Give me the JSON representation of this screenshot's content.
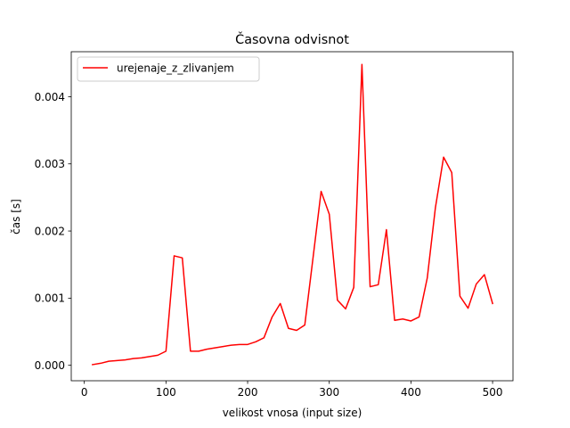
{
  "chart_data": {
    "type": "line",
    "title": "Časovna odvisnot",
    "xlabel": "velikost vnosa (input size)",
    "ylabel": "čas [s]",
    "xlim": [
      -16,
      525
    ],
    "ylim": [
      -0.00023,
      0.00467
    ],
    "x_ticks": [
      0,
      100,
      200,
      300,
      400,
      500
    ],
    "x_tick_labels": [
      "0",
      "100",
      "200",
      "300",
      "400",
      "500"
    ],
    "y_ticks": [
      0,
      0.001,
      0.002,
      0.003,
      0.004
    ],
    "y_tick_labels": [
      "0.000",
      "0.001",
      "0.002",
      "0.003",
      "0.004"
    ],
    "grid": false,
    "legend_position": "top-left",
    "series": [
      {
        "name": "urejenaje_z_zlivanjem",
        "color": "#ff0000",
        "x": [
          10,
          20,
          30,
          40,
          50,
          60,
          70,
          80,
          90,
          100,
          110,
          120,
          130,
          140,
          150,
          160,
          170,
          180,
          190,
          200,
          210,
          220,
          230,
          240,
          250,
          260,
          270,
          280,
          290,
          300,
          310,
          320,
          330,
          340,
          350,
          360,
          370,
          380,
          390,
          400,
          410,
          420,
          430,
          440,
          450,
          460,
          470,
          480,
          490,
          500
        ],
        "y": [
          1e-05,
          3e-05,
          6e-05,
          7e-05,
          8e-05,
          0.0001,
          0.00011,
          0.00013,
          0.00015,
          0.00021,
          0.00163,
          0.0016,
          0.00021,
          0.00021,
          0.00024,
          0.00026,
          0.00028,
          0.0003,
          0.00031,
          0.00031,
          0.00035,
          0.00041,
          0.00072,
          0.00092,
          0.00055,
          0.00052,
          0.0006,
          0.00159,
          0.00259,
          0.00225,
          0.00097,
          0.00084,
          0.00116,
          0.00448,
          0.00117,
          0.0012,
          0.00202,
          0.00067,
          0.00069,
          0.00066,
          0.00072,
          0.0013,
          0.00235,
          0.0031,
          0.00287,
          0.00103,
          0.00085,
          0.00121,
          0.00135,
          0.00092
        ]
      }
    ]
  }
}
